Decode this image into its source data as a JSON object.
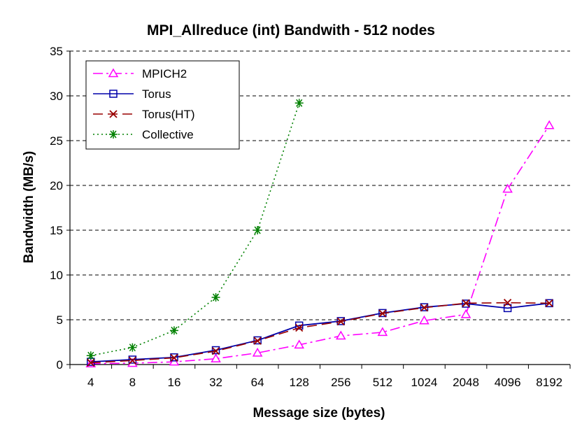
{
  "chart_data": {
    "type": "line",
    "title": "MPI_Allreduce (int) Bandwith - 512 nodes",
    "xlabel": "Message size (bytes)",
    "ylabel": "Bandwidth (MB/s)",
    "categories": [
      "4",
      "8",
      "16",
      "32",
      "64",
      "128",
      "256",
      "512",
      "1024",
      "2048",
      "4096",
      "8192"
    ],
    "ylim": [
      0,
      35
    ],
    "yticks": [
      0,
      5,
      10,
      15,
      20,
      25,
      30,
      35
    ],
    "grid": "horizontal dashed",
    "legend_position": "top-left",
    "series": [
      {
        "name": "MPICH2",
        "color": "#ff00ff",
        "marker": "triangle",
        "dash": "dash-dot",
        "values": [
          0.1,
          0.15,
          0.3,
          0.65,
          1.3,
          2.2,
          3.2,
          3.6,
          4.9,
          5.6,
          19.6,
          26.7
        ]
      },
      {
        "name": "Torus",
        "color": "#0000aa",
        "marker": "square",
        "dash": "solid",
        "values": [
          0.3,
          0.55,
          0.8,
          1.6,
          2.7,
          4.35,
          4.85,
          5.75,
          6.4,
          6.8,
          6.3,
          6.85
        ]
      },
      {
        "name": "Torus(HT)",
        "color": "#990000",
        "marker": "x",
        "dash": "long-dash",
        "values": [
          0.2,
          0.45,
          0.75,
          1.5,
          2.65,
          4.1,
          4.8,
          5.7,
          6.35,
          6.85,
          6.9,
          6.85
        ]
      },
      {
        "name": "Collective",
        "color": "#008000",
        "marker": "asterisk",
        "dash": "dotted",
        "values": [
          1.0,
          1.9,
          3.8,
          7.5,
          15.0,
          29.2,
          null,
          null,
          null,
          null,
          null,
          null
        ]
      }
    ]
  }
}
